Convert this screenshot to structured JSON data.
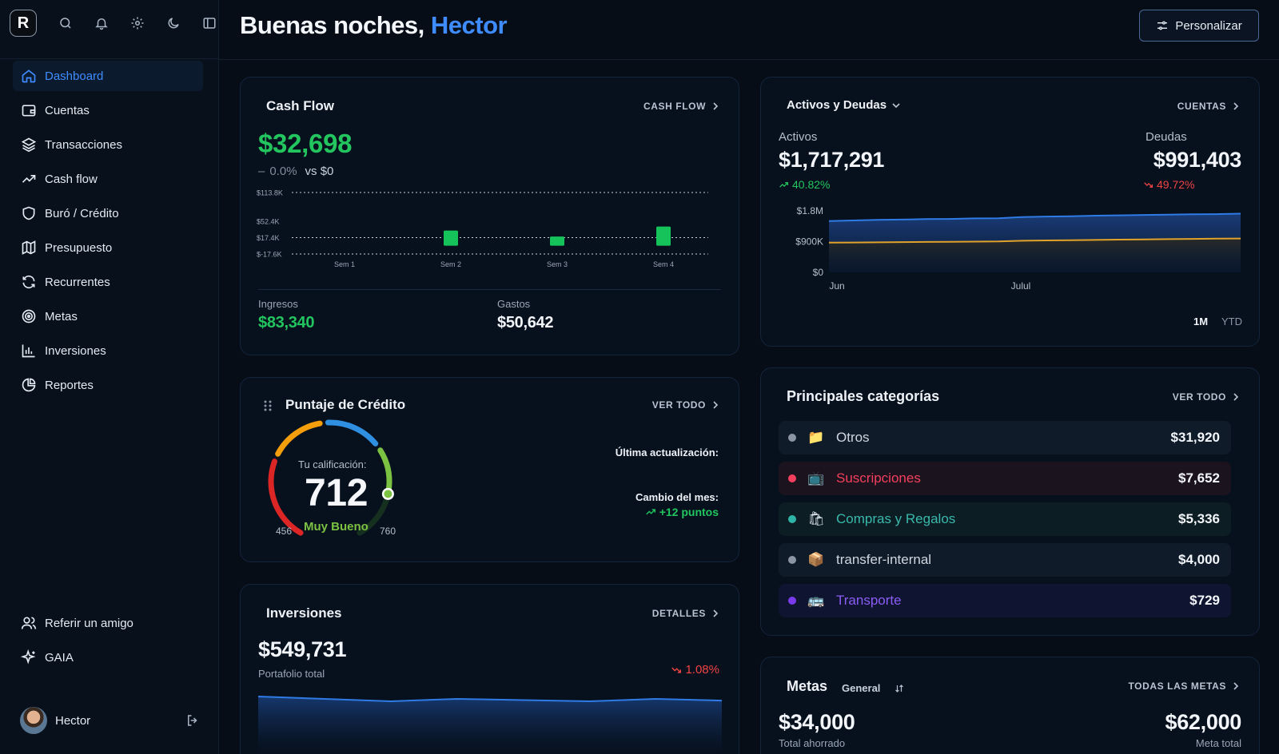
{
  "sidebar": {
    "logo": "R",
    "nav": [
      {
        "label": "Dashboard",
        "icon": "home-icon"
      },
      {
        "label": "Cuentas",
        "icon": "wallet-icon"
      },
      {
        "label": "Transacciones",
        "icon": "layers-icon"
      },
      {
        "label": "Cash flow",
        "icon": "trending-icon"
      },
      {
        "label": "Buró / Crédito",
        "icon": "shield-icon"
      },
      {
        "label": "Presupuesto",
        "icon": "map-icon"
      },
      {
        "label": "Recurrentes",
        "icon": "refresh-icon"
      },
      {
        "label": "Metas",
        "icon": "target-icon"
      },
      {
        "label": "Inversiones",
        "icon": "bar-chart-icon"
      },
      {
        "label": "Reportes",
        "icon": "pie-chart-icon"
      }
    ],
    "bottom": [
      {
        "label": "Referir un amigo",
        "icon": "users-icon"
      },
      {
        "label": "GAIA",
        "icon": "sparkles-icon"
      }
    ],
    "user_name": "Hector"
  },
  "header": {
    "greeting": "Buenas noches,",
    "name": "Hector",
    "customize_label": "Personalizar"
  },
  "cashflow": {
    "title": "Cash Flow",
    "link": "CASH FLOW",
    "amount": "$32,698",
    "change_icon": "–",
    "change": "0.0%",
    "vs": "vs $0",
    "income_label": "Ingresos",
    "income": "$83,340",
    "expense_label": "Gastos",
    "expense": "$50,642"
  },
  "credit": {
    "title": "Puntaje de Crédito",
    "link": "VER TODO",
    "caption": "Tu calificación:",
    "score": "712",
    "rating": "Muy Bueno",
    "min": "456",
    "max": "760",
    "score_fraction": 0.84,
    "update_label": "Última actualización:",
    "change_label": "Cambio del mes:",
    "change": "+12 puntos"
  },
  "investments": {
    "title": "Inversiones",
    "link": "DETALLES",
    "amount": "$549,731",
    "caption": "Portafolio total",
    "change": "1.08%"
  },
  "assets": {
    "title": "Activos y Deudas",
    "link": "CUENTAS",
    "assets_label": "Activos",
    "assets_amount": "$1,717,291",
    "assets_change": "40.82%",
    "debts_label": "Deudas",
    "debts_amount": "$991,403",
    "debts_change": "49.72%",
    "range_1m": "1M",
    "range_ytd": "YTD"
  },
  "categories": {
    "title": "Principales categorías",
    "link": "VER TODO",
    "items": [
      {
        "label": "Otros",
        "value": "$31,920",
        "emoji": "📁",
        "color": "#8b95a3",
        "bg": "#101b2a",
        "text": "#cfd6df"
      },
      {
        "label": "Suscripciones",
        "value": "$7,652",
        "emoji": "📺",
        "color": "#f43f5e",
        "bg": "#1b131d",
        "text": "#f43f5e"
      },
      {
        "label": "Compras y Regalos",
        "value": "$5,336",
        "emoji": "🛍",
        "color": "#2fb5a7",
        "bg": "#0c1d24",
        "text": "#39b9ac"
      },
      {
        "label": "transfer-internal",
        "value": "$4,000",
        "emoji": "📦",
        "color": "#8b95a3",
        "bg": "#101b2a",
        "text": "#cfd6df"
      },
      {
        "label": "Transporte",
        "value": "$729",
        "emoji": "🚌",
        "color": "#7c3aed",
        "bg": "#0f1530",
        "text": "#8b5cf6"
      }
    ]
  },
  "goals": {
    "title": "Metas",
    "filter": "General",
    "link": "TODAS LAS METAS",
    "saved": "$34,000",
    "saved_label": "Total ahorrado",
    "target": "$62,000",
    "target_label": "Meta total"
  },
  "chart_data": [
    {
      "type": "bar",
      "name": "cash-flow-weekly",
      "categories": [
        "Sem 1",
        "Sem 2",
        "Sem 3",
        "Sem 4"
      ],
      "values": [
        0,
        32500,
        19800,
        41000
      ],
      "ticks": [
        "$113.8K",
        "$52.4K",
        "$17.4K",
        "$-17.6K"
      ],
      "tick_values": [
        113800,
        52400,
        17400,
        -17600
      ],
      "ylim": [
        -17600,
        113800
      ],
      "color": "#16c25a"
    },
    {
      "type": "area",
      "name": "assets-debts",
      "x_ticks": [
        "Jun",
        "Julul"
      ],
      "y_ticks": [
        "$1.8M",
        "$900K",
        "$0"
      ],
      "y_tick_values": [
        1800000,
        900000,
        0
      ],
      "ylim": [
        0,
        1800000
      ],
      "series": [
        {
          "name": "Activos",
          "color": "#2f7be5",
          "values": [
            1500000,
            1520000,
            1535000,
            1545000,
            1560000,
            1565000,
            1580000,
            1585000,
            1620000,
            1635000,
            1640000,
            1660000,
            1670000,
            1680000,
            1690000,
            1700000,
            1705000,
            1717291
          ]
        },
        {
          "name": "Deudas",
          "color": "#e0a22b",
          "values": [
            870000,
            875000,
            880000,
            885000,
            890000,
            892000,
            900000,
            905000,
            925000,
            935000,
            940000,
            950000,
            958000,
            965000,
            972000,
            980000,
            986000,
            991403
          ]
        }
      ]
    },
    {
      "type": "area",
      "name": "portfolio",
      "series": [
        {
          "name": "Portafolio",
          "color": "#2f7be5",
          "values": [
            549900,
            549800,
            549700,
            549800,
            549750,
            549700,
            549800,
            549731
          ]
        }
      ]
    }
  ]
}
